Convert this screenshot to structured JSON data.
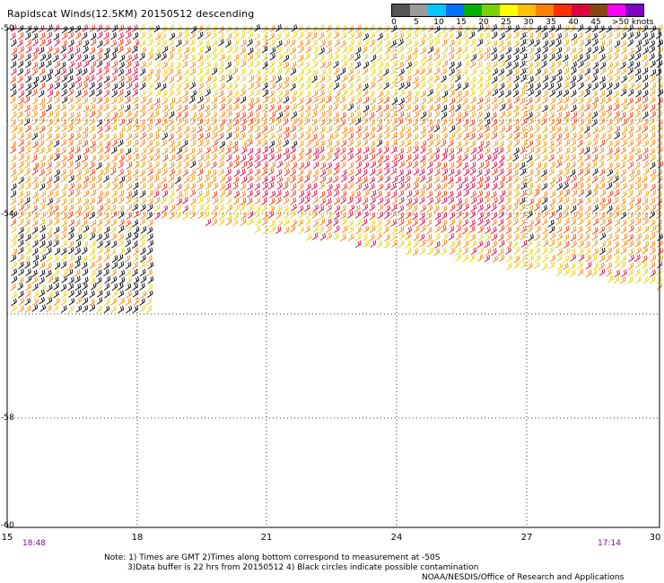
{
  "title": "Rapidscat Winds(12.5KM) 20150512 descending",
  "legend": {
    "colors": [
      "#555555",
      "#9a9a9a",
      "#00c8ff",
      "#0070ff",
      "#00b000",
      "#7ad000",
      "#ffff00",
      "#ffc000",
      "#ff8000",
      "#ff3000",
      "#e00040",
      "#8b4513",
      "#ff00ff",
      "#8000c0"
    ],
    "labels": [
      "0",
      "5",
      "10",
      "15",
      "20",
      "25",
      "30",
      "35",
      "40",
      "45",
      ">50 knots"
    ]
  },
  "axes": {
    "lat_labels": [
      "-50",
      "-54",
      "-58",
      "-60"
    ],
    "lon_labels": [
      "15",
      "18",
      "21",
      "24",
      "27",
      "30"
    ]
  },
  "times": {
    "start": "18:48",
    "end": "17:14"
  },
  "notes": {
    "line1": "Note: 1) Times are GMT 2)Times along bottom correspond to measurement at -50S",
    "line2": "3)Data buffer is 22 hrs from 20150512 4) Black circles indicate possible contamination",
    "credit": "NOAA/NESDIS/Office of Research and Applications"
  }
}
